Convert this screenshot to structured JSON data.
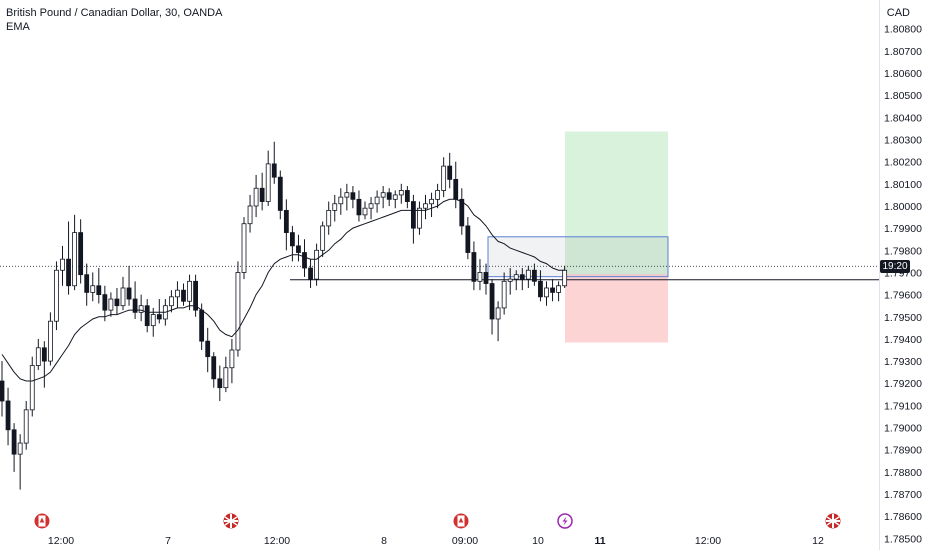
{
  "legend": {
    "title": "British Pound / Canadian Dollar, 30, OANDA",
    "indicator": "EMA"
  },
  "price_axis": {
    "currency": "CAD",
    "ticks": [
      "1.80800",
      "1.80700",
      "1.80600",
      "1.80500",
      "1.80400",
      "1.80300",
      "1.80200",
      "1.80100",
      "1.80000",
      "1.79900",
      "1.79800",
      "1.79700",
      "1.79600",
      "1.79500",
      "1.79400",
      "1.79300",
      "1.79200",
      "1.79100",
      "1.79000",
      "1.78900",
      "1.78800",
      "1.78700",
      "1.78600",
      "1.78500"
    ],
    "countdown": "19:20"
  },
  "time_axis": {
    "labels": [
      {
        "text": "12:00",
        "bold": false
      },
      {
        "text": "7",
        "bold": false
      },
      {
        "text": "12:00",
        "bold": false
      },
      {
        "text": "8",
        "bold": false
      },
      {
        "text": "09:00",
        "bold": false
      },
      {
        "text": "10",
        "bold": false
      },
      {
        "text": "11",
        "bold": true
      },
      {
        "text": "12:00",
        "bold": false
      },
      {
        "text": "12",
        "bold": false
      }
    ]
  },
  "events": [
    {
      "icon": "canada-flag-icon"
    },
    {
      "icon": "uk-flag-icon"
    },
    {
      "icon": "canada-flag-icon"
    },
    {
      "icon": "lightning-icon"
    },
    {
      "icon": "uk-flag-icon"
    }
  ],
  "colors": {
    "candle": "#131722",
    "ema": "#131722",
    "profit_zone": "#d9f2dc",
    "loss_zone": "#fcd4d4",
    "range_box": "#5b7fd4"
  },
  "chart_data": {
    "type": "candlestick",
    "symbol": "GBPCAD",
    "interval": "30",
    "ylim": [
      1.7847,
      1.8088
    ],
    "ohlc": [
      [
        1.7921,
        1.793,
        1.7905,
        1.7912
      ],
      [
        1.7912,
        1.7918,
        1.7892,
        1.7899
      ],
      [
        1.7899,
        1.7902,
        1.788,
        1.7888
      ],
      [
        1.7888,
        1.7897,
        1.7872,
        1.7893
      ],
      [
        1.7893,
        1.7912,
        1.789,
        1.7908
      ],
      [
        1.7908,
        1.7932,
        1.7905,
        1.7928
      ],
      [
        1.7928,
        1.794,
        1.7926,
        1.7936
      ],
      [
        1.7936,
        1.7939,
        1.7918,
        1.793
      ],
      [
        1.793,
        1.7952,
        1.7928,
        1.7948
      ],
      [
        1.7948,
        1.7975,
        1.7944,
        1.7971
      ],
      [
        1.7971,
        1.7982,
        1.7964,
        1.7976
      ],
      [
        1.7976,
        1.7993,
        1.796,
        1.7964
      ],
      [
        1.7964,
        1.7996,
        1.7962,
        1.7988
      ],
      [
        1.7988,
        1.7994,
        1.7965,
        1.7969
      ],
      [
        1.7969,
        1.7974,
        1.7955,
        1.7961
      ],
      [
        1.7961,
        1.797,
        1.7957,
        1.7964
      ],
      [
        1.7964,
        1.7972,
        1.7956,
        1.796
      ],
      [
        1.796,
        1.7964,
        1.7948,
        1.7953
      ],
      [
        1.7953,
        1.7961,
        1.795,
        1.7958
      ],
      [
        1.7958,
        1.7963,
        1.7951,
        1.7955
      ],
      [
        1.7955,
        1.7968,
        1.7953,
        1.7963
      ],
      [
        1.7963,
        1.7973,
        1.7955,
        1.7958
      ],
      [
        1.7958,
        1.7966,
        1.7949,
        1.7952
      ],
      [
        1.7952,
        1.796,
        1.7948,
        1.7955
      ],
      [
        1.7955,
        1.7958,
        1.7943,
        1.7946
      ],
      [
        1.7946,
        1.7954,
        1.7941,
        1.7951
      ],
      [
        1.7951,
        1.7958,
        1.7947,
        1.7949
      ],
      [
        1.7949,
        1.7958,
        1.7946,
        1.7955
      ],
      [
        1.7955,
        1.7962,
        1.7952,
        1.7959
      ],
      [
        1.7959,
        1.7966,
        1.7954,
        1.7962
      ],
      [
        1.7962,
        1.7965,
        1.7955,
        1.7957
      ],
      [
        1.7957,
        1.7969,
        1.7953,
        1.7966
      ],
      [
        1.7966,
        1.7969,
        1.795,
        1.7953
      ],
      [
        1.7953,
        1.7956,
        1.7935,
        1.7939
      ],
      [
        1.7939,
        1.7945,
        1.7925,
        1.7932
      ],
      [
        1.7932,
        1.7934,
        1.7918,
        1.7922
      ],
      [
        1.7922,
        1.7928,
        1.7912,
        1.7918
      ],
      [
        1.7918,
        1.7932,
        1.7916,
        1.7927
      ],
      [
        1.7927,
        1.794,
        1.792,
        1.7935
      ],
      [
        1.7935,
        1.7975,
        1.7932,
        1.797
      ],
      [
        1.797,
        1.7995,
        1.7967,
        1.7992
      ],
      [
        1.7992,
        1.8005,
        1.7988,
        1.8
      ],
      [
        1.8,
        1.8014,
        1.7995,
        1.8008
      ],
      [
        1.8008,
        1.8015,
        1.7998,
        1.8002
      ],
      [
        1.8002,
        1.8025,
        1.8,
        1.8019
      ],
      [
        1.8019,
        1.8029,
        1.801,
        1.8013
      ],
      [
        1.8013,
        1.8016,
        1.7994,
        1.7998
      ],
      [
        1.7998,
        1.8003,
        1.798,
        1.7988
      ],
      [
        1.7988,
        1.7991,
        1.7975,
        1.7982
      ],
      [
        1.7982,
        1.7987,
        1.7975,
        1.7979
      ],
      [
        1.7979,
        1.7985,
        1.7968,
        1.7972
      ],
      [
        1.7972,
        1.7976,
        1.7963,
        1.7967
      ],
      [
        1.7967,
        1.7983,
        1.7964,
        1.798
      ],
      [
        1.798,
        1.7993,
        1.7977,
        1.7991
      ],
      [
        1.7991,
        1.8002,
        1.7987,
        1.7998
      ],
      [
        1.7998,
        1.8005,
        1.7993,
        1.8001
      ],
      [
        1.8001,
        1.8008,
        1.7996,
        1.8004
      ],
      [
        1.8004,
        1.801,
        1.7998,
        1.8006
      ],
      [
        1.8006,
        1.8009,
        1.7999,
        1.8003
      ],
      [
        1.8003,
        1.8007,
        1.7993,
        1.7996
      ],
      [
        1.7996,
        1.8002,
        1.7994,
        1.7999
      ],
      [
        1.7999,
        1.8004,
        1.7994,
        1.8001
      ],
      [
        1.8001,
        1.8007,
        1.7997,
        1.8004
      ],
      [
        1.8004,
        1.8009,
        1.7999,
        1.8006
      ],
      [
        1.8006,
        1.8008,
        1.8,
        1.8003
      ],
      [
        1.8003,
        1.8007,
        1.7999,
        1.8005
      ],
      [
        1.8005,
        1.801,
        1.8001,
        1.8007
      ],
      [
        1.8007,
        1.8009,
        1.7999,
        1.8002
      ],
      [
        1.8002,
        1.8005,
        1.7983,
        1.799
      ],
      [
        1.799,
        1.8002,
        1.7987,
        1.7999
      ],
      [
        1.7999,
        1.8005,
        1.7994,
        1.8001
      ],
      [
        1.8001,
        1.8006,
        1.7995,
        1.8003
      ],
      [
        1.8003,
        1.801,
        1.7999,
        1.8007
      ],
      [
        1.8007,
        1.8022,
        1.8004,
        1.8018
      ],
      [
        1.8018,
        1.8024,
        1.8008,
        1.8012
      ],
      [
        1.8012,
        1.802,
        1.7999,
        1.8003
      ],
      [
        1.8003,
        1.8008,
        1.7987,
        1.7991
      ],
      [
        1.7991,
        1.7995,
        1.7976,
        1.7979
      ],
      [
        1.7979,
        1.7984,
        1.7962,
        1.7966
      ],
      [
        1.7966,
        1.7976,
        1.7962,
        1.797
      ],
      [
        1.797,
        1.7974,
        1.796,
        1.7965
      ],
      [
        1.7965,
        1.7967,
        1.7942,
        1.7949
      ],
      [
        1.7949,
        1.7957,
        1.7939,
        1.7954
      ],
      [
        1.7954,
        1.797,
        1.7951,
        1.7966
      ],
      [
        1.7966,
        1.7972,
        1.796,
        1.7967
      ],
      [
        1.7967,
        1.7971,
        1.7962,
        1.7969
      ],
      [
        1.7969,
        1.7972,
        1.7962,
        1.7967
      ],
      [
        1.7967,
        1.7973,
        1.7963,
        1.7971
      ],
      [
        1.7971,
        1.7974,
        1.7964,
        1.7966
      ],
      [
        1.7966,
        1.7971,
        1.7957,
        1.7959
      ],
      [
        1.7959,
        1.7966,
        1.7955,
        1.7963
      ],
      [
        1.7963,
        1.7967,
        1.7957,
        1.7961
      ],
      [
        1.7961,
        1.7966,
        1.7957,
        1.7964
      ],
      [
        1.7964,
        1.7973,
        1.7963,
        1.7971
      ]
    ],
    "ema": [
      1.7933,
      1.7929,
      1.7925,
      1.7922,
      1.7921,
      1.7921,
      1.7922,
      1.7923,
      1.7925,
      1.7929,
      1.7933,
      1.7937,
      1.7942,
      1.7945,
      1.7947,
      1.7949,
      1.795,
      1.795,
      1.7951,
      1.7951,
      1.7952,
      1.7953,
      1.7953,
      1.7953,
      1.7952,
      1.7952,
      1.7952,
      1.7952,
      1.7953,
      1.7954,
      1.7954,
      1.7955,
      1.7955,
      1.7953,
      1.7951,
      1.7948,
      1.7944,
      1.7942,
      1.7941,
      1.7944,
      1.7949,
      1.7954,
      1.796,
      1.7964,
      1.797,
      1.7974,
      1.7976,
      1.7977,
      1.7978,
      1.7978,
      1.7977,
      1.7976,
      1.7976,
      1.7978,
      1.798,
      1.7983,
      1.7985,
      1.7988,
      1.799,
      1.7991,
      1.7992,
      1.7993,
      1.7994,
      1.7995,
      1.7996,
      1.7997,
      1.7998,
      1.7998,
      1.7998,
      1.7998,
      1.7998,
      1.7999,
      1.8,
      1.8002,
      1.8003,
      1.8003,
      1.8002,
      1.8,
      1.7996,
      1.7994,
      1.7991,
      1.7987,
      1.7984,
      1.7983,
      1.7981,
      1.798,
      1.7979,
      1.7978,
      1.7977,
      1.7975,
      1.7974,
      1.7972,
      1.7971,
      1.7971
    ],
    "last_price": 1.79728,
    "support_level": 1.79667,
    "range_box": {
      "top": 1.79861,
      "bottom": 1.79681
    },
    "position": {
      "entry": 1.79693,
      "target": 1.80336,
      "stop": 1.79384
    }
  }
}
